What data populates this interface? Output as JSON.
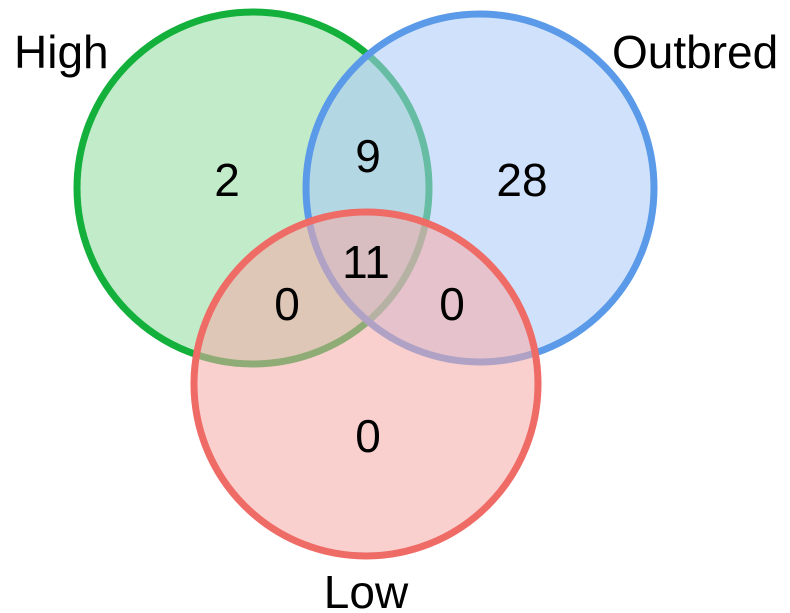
{
  "sets": [
    {
      "id": "high",
      "label": "High",
      "fill": "#8fdc9c",
      "stroke": "#14b03c"
    },
    {
      "id": "outbred",
      "label": "Outbred",
      "fill": "#a9c8f8",
      "stroke": "#5a9ae8"
    },
    {
      "id": "low",
      "label": "Low",
      "fill": "#f6aaa6",
      "stroke": "#ee6b66"
    }
  ],
  "regions": {
    "high_only": "2",
    "outbred_only": "28",
    "low_only": "0",
    "high_outbred": "9",
    "high_low": "0",
    "outbred_low": "0",
    "all_three": "11"
  }
}
